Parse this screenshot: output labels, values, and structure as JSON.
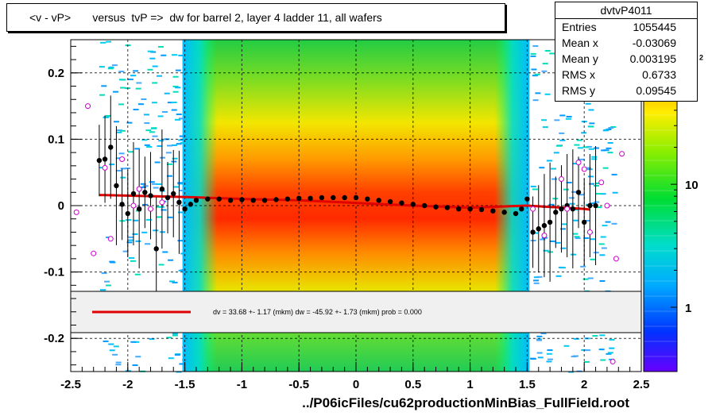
{
  "title": "<v - vP>       versus  tvP =>  dw for barrel 2, layer 4 ladder 11, all wafers",
  "stats": {
    "name": "dvtvP4011",
    "rows": [
      {
        "key": "Entries",
        "value": "1055445"
      },
      {
        "key": "Mean x",
        "value": "-0.03069"
      },
      {
        "key": "Mean y",
        "value": "0.003195"
      },
      {
        "key": "RMS x",
        "value": "0.6733"
      },
      {
        "key": "RMS y",
        "value": "0.09545"
      }
    ]
  },
  "legend_text": "dv =   33.68 +-  1.17 (mkm) dw =  -45.92 +-  1.73 (mkm) prob = 0.000",
  "xaxis_title": "../P06icFiles/cu62productionMinBias_FullField.root",
  "colors": {
    "fit_line": "#e00000",
    "markers": "#000000",
    "open_markers": "#cc00cc",
    "legend_bg": "#f0f0f0"
  },
  "chart_data": {
    "type": "heatmap",
    "xlim": [
      -2.5,
      2.5
    ],
    "ylim": [
      -0.25,
      0.25
    ],
    "x_ticks": [
      "-2.5",
      "-2",
      "-1.5",
      "-1",
      "-0.5",
      "0",
      "0.5",
      "1",
      "1.5",
      "2",
      "2.5"
    ],
    "x_tick_values": [
      -2.5,
      -2,
      -1.5,
      -1,
      -0.5,
      0,
      0.5,
      1,
      1.5,
      2,
      2.5
    ],
    "y_ticks": [
      "0.2",
      "0.1",
      "0",
      "-0.1",
      "-0.2"
    ],
    "y_tick_values": [
      0.2,
      0.1,
      0,
      -0.1,
      -0.2
    ],
    "z_scale": "log",
    "z_ticks": [
      "1",
      "10",
      "10^2"
    ],
    "z_tick_values": [
      1,
      10,
      100
    ],
    "grid": true,
    "band_x": [
      -1.52,
      1.52
    ],
    "profile_mean": [
      {
        "x": -2.25,
        "y": 0.068
      },
      {
        "x": -2.2,
        "y": 0.07
      },
      {
        "x": -2.15,
        "y": 0.088
      },
      {
        "x": -2.1,
        "y": 0.03
      },
      {
        "x": -2.05,
        "y": 0.002
      },
      {
        "x": -2.0,
        "y": -0.012
      },
      {
        "x": -1.95,
        "y": 0.018
      },
      {
        "x": -1.9,
        "y": -0.005
      },
      {
        "x": -1.85,
        "y": 0.02
      },
      {
        "x": -1.8,
        "y": 0.015
      },
      {
        "x": -1.75,
        "y": -0.065
      },
      {
        "x": -1.7,
        "y": 0.025
      },
      {
        "x": -1.65,
        "y": 0.012
      },
      {
        "x": -1.6,
        "y": 0.018
      },
      {
        "x": -1.55,
        "y": 0.005
      },
      {
        "x": -1.5,
        "y": -0.005
      },
      {
        "x": -1.45,
        "y": 0.002
      },
      {
        "x": -1.4,
        "y": 0.008
      },
      {
        "x": -1.3,
        "y": 0.01
      },
      {
        "x": -1.2,
        "y": 0.01
      },
      {
        "x": -1.1,
        "y": 0.008
      },
      {
        "x": -1.0,
        "y": 0.009
      },
      {
        "x": -0.9,
        "y": 0.008
      },
      {
        "x": -0.8,
        "y": 0.008
      },
      {
        "x": -0.7,
        "y": 0.009
      },
      {
        "x": -0.6,
        "y": 0.01
      },
      {
        "x": -0.5,
        "y": 0.011
      },
      {
        "x": -0.4,
        "y": 0.011
      },
      {
        "x": -0.3,
        "y": 0.012
      },
      {
        "x": -0.2,
        "y": 0.012
      },
      {
        "x": -0.1,
        "y": 0.012
      },
      {
        "x": 0.0,
        "y": 0.012
      },
      {
        "x": 0.1,
        "y": 0.01
      },
      {
        "x": 0.2,
        "y": 0.008
      },
      {
        "x": 0.3,
        "y": 0.006
      },
      {
        "x": 0.4,
        "y": 0.004
      },
      {
        "x": 0.5,
        "y": 0.002
      },
      {
        "x": 0.6,
        "y": 0.0
      },
      {
        "x": 0.7,
        "y": -0.002
      },
      {
        "x": 0.8,
        "y": -0.003
      },
      {
        "x": 0.9,
        "y": -0.005
      },
      {
        "x": 1.0,
        "y": -0.005
      },
      {
        "x": 1.1,
        "y": -0.006
      },
      {
        "x": 1.2,
        "y": -0.008
      },
      {
        "x": 1.3,
        "y": -0.01
      },
      {
        "x": 1.4,
        "y": -0.012
      },
      {
        "x": 1.45,
        "y": -0.005
      },
      {
        "x": 1.5,
        "y": 0.01
      },
      {
        "x": 1.55,
        "y": -0.04
      },
      {
        "x": 1.6,
        "y": -0.035
      },
      {
        "x": 1.65,
        "y": -0.03
      },
      {
        "x": 1.7,
        "y": -0.025
      },
      {
        "x": 1.75,
        "y": -0.01
      },
      {
        "x": 1.8,
        "y": -0.005
      },
      {
        "x": 1.85,
        "y": 0.0
      },
      {
        "x": 1.9,
        "y": -0.005
      },
      {
        "x": 1.95,
        "y": 0.02
      },
      {
        "x": 2.0,
        "y": -0.025
      },
      {
        "x": 2.05,
        "y": 0.0
      },
      {
        "x": 2.1,
        "y": 0.0
      }
    ],
    "open_points": [
      {
        "x": -2.45,
        "y": -0.01
      },
      {
        "x": -2.35,
        "y": 0.15
      },
      {
        "x": -2.3,
        "y": -0.072
      },
      {
        "x": -2.2,
        "y": 0.057
      },
      {
        "x": -2.15,
        "y": -0.05
      },
      {
        "x": -2.05,
        "y": 0.07
      },
      {
        "x": -1.95,
        "y": 0.0
      },
      {
        "x": -1.9,
        "y": 0.025
      },
      {
        "x": -1.8,
        "y": -0.005
      },
      {
        "x": -1.7,
        "y": 0.005
      },
      {
        "x": 1.55,
        "y": -0.005
      },
      {
        "x": 1.65,
        "y": -0.045
      },
      {
        "x": 1.8,
        "y": 0.04
      },
      {
        "x": 1.85,
        "y": -0.005
      },
      {
        "x": 1.95,
        "y": 0.065
      },
      {
        "x": 2.0,
        "y": 0.055
      },
      {
        "x": 2.05,
        "y": -0.04
      },
      {
        "x": 2.15,
        "y": 0.035
      },
      {
        "x": 2.2,
        "y": 0.0
      },
      {
        "x": 2.25,
        "y": -0.235
      },
      {
        "x": 2.28,
        "y": -0.08
      },
      {
        "x": 2.33,
        "y": 0.078
      }
    ],
    "fit_line": [
      {
        "x": -2.25,
        "y": 0.016
      },
      {
        "x": -1.5,
        "y": 0.013
      },
      {
        "x": -1.0,
        "y": 0.01
      },
      {
        "x": -0.5,
        "y": 0.008
      },
      {
        "x": 0.0,
        "y": 0.004
      },
      {
        "x": 0.5,
        "y": 0.0
      },
      {
        "x": 1.0,
        "y": -0.003
      },
      {
        "x": 1.5,
        "y": 0.0
      },
      {
        "x": 2.0,
        "y": -0.005
      },
      {
        "x": 2.05,
        "y": -0.006
      }
    ]
  }
}
